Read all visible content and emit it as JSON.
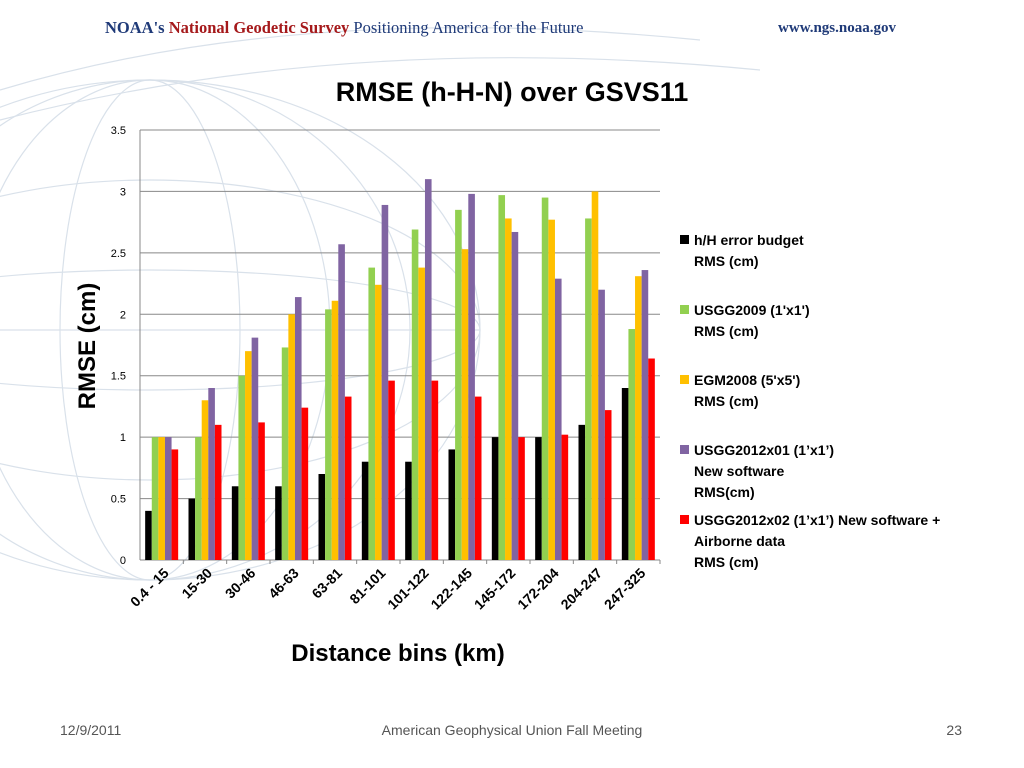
{
  "header": {
    "org_prefix": "NOAA's",
    "org_name": "National Geodetic Survey",
    "tagline": "Positioning America for the Future",
    "website": "www.ngs.noaa.gov"
  },
  "footer": {
    "date": "12/9/2011",
    "event": "American Geophysical Union Fall Meeting",
    "page_number": "23"
  },
  "colors": {
    "h/H error budget": "#000000",
    "USGG2009": "#92d050",
    "EGM2008": "#ffc000",
    "USGG2012x01": "#8064a2",
    "USGG2012x02": "#ff0000"
  },
  "chart_data": {
    "type": "bar",
    "title": "RMSE (h-H-N) over GSVS11",
    "xlabel": "Distance bins (km)",
    "ylabel": "RMSE (cm)",
    "ylim": [
      0,
      3.5
    ],
    "yticks": [
      "0",
      "0.5",
      "1",
      "1.5",
      "2",
      "2.5",
      "3",
      "3.5"
    ],
    "grid": true,
    "legend_position": "right",
    "categories": [
      "0.4 - 15",
      "15-30",
      "30-46",
      "46-63",
      "63-81",
      "81-101",
      "101-122",
      "122-145",
      "145-172",
      "172-204",
      "204-247",
      "247-325"
    ],
    "series": [
      {
        "name": "h/H error budget\nRMS (cm)",
        "color": "#000000",
        "values": [
          0.4,
          0.5,
          0.6,
          0.6,
          0.7,
          0.8,
          0.8,
          0.9,
          1.0,
          1.0,
          1.1,
          1.4
        ]
      },
      {
        "name": "USGG2009 (1'x1')\nRMS (cm)",
        "color": "#92d050",
        "values": [
          1.0,
          1.0,
          1.5,
          1.73,
          2.04,
          2.38,
          2.69,
          2.85,
          2.97,
          2.95,
          2.78,
          1.88
        ]
      },
      {
        "name": "EGM2008  (5'x5')\nRMS (cm)",
        "color": "#ffc000",
        "values": [
          1.0,
          1.3,
          1.7,
          2.0,
          2.11,
          2.24,
          2.38,
          2.53,
          2.78,
          2.77,
          3.0,
          2.31
        ]
      },
      {
        "name": "USGG2012x01 (1’x1’)\nNew software\nRMS(cm)",
        "color": "#8064a2",
        "values": [
          1.0,
          1.4,
          1.81,
          2.14,
          2.57,
          2.89,
          3.1,
          2.98,
          2.67,
          2.29,
          2.2,
          2.36
        ]
      },
      {
        "name": "USGG2012x02 (1’x1’) New software +\nAirborne data\nRMS (cm)",
        "color": "#ff0000",
        "values": [
          0.9,
          1.1,
          1.12,
          1.24,
          1.33,
          1.46,
          1.46,
          1.33,
          1.0,
          1.02,
          1.22,
          1.64
        ]
      }
    ]
  }
}
